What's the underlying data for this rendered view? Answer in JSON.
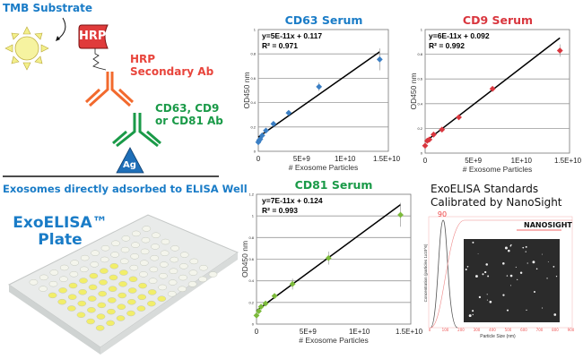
{
  "diagram": {
    "substrate_label": "TMB Substrate",
    "enzyme_label": "HRP",
    "secondary_label_1": "HRP",
    "secondary_label_2": "Secondary Ab",
    "primary_label_1": "CD63, CD9",
    "primary_label_2": "or CD81 Ab",
    "antigen_label": "Ag",
    "well_caption": "Exosomes directly adsorbed to ELISA Well",
    "plate_title_1": "ExoELISA™",
    "plate_title_2": "Plate",
    "colors": {
      "blue": "#1a7cc7",
      "red": "#e8453c",
      "orange": "#f26a2e",
      "green": "#1a9a48",
      "sun": "#f3ef8a"
    }
  },
  "nta": {
    "title_1": "ExoELISA Standards",
    "title_2": "Calibrated by NanoSight",
    "peak_label": "90",
    "xlabel": "Particle Size (nm)",
    "ylabel": "Concentration (particles 1x10^6)",
    "logo": "NANOSIGHT",
    "x_ticks": [
      "0",
      "100",
      "200",
      "300",
      "400",
      "500",
      "600",
      "700",
      "800",
      "900"
    ]
  },
  "chart_data": [
    {
      "type": "scatter",
      "title": "CD63 Serum",
      "color": "#3b7fc4",
      "xlabel": "# Exosome Particles",
      "ylabel": "OD450 nm",
      "equation": "y=5E-11x + 0.117",
      "r2": "R² = 0.971",
      "xlim": [
        0,
        15000000000.0
      ],
      "ylim": [
        0,
        1
      ],
      "x_ticks": [
        "0",
        "5E+9",
        "1E+10",
        "1.5E+10"
      ],
      "y_ticks": [
        "0",
        "0.2",
        "0.4",
        "0.6",
        "0.8",
        "1"
      ],
      "x": [
        0,
        100000000.0,
        220000000.0,
        440000000.0,
        880000000.0,
        1750000000.0,
        3500000000.0,
        7000000000.0,
        14000000000.0
      ],
      "y": [
        0.075,
        0.09,
        0.1,
        0.13,
        0.17,
        0.225,
        0.315,
        0.53,
        0.755
      ],
      "err": [
        0.01,
        0.01,
        0.01,
        0.01,
        0.01,
        0.015,
        0.02,
        0.035,
        0.09
      ],
      "fit": {
        "slope": 5e-11,
        "intercept": 0.117
      },
      "grid": true
    },
    {
      "type": "scatter",
      "title": "CD9 Serum",
      "color": "#d9363e",
      "xlabel": "# Exosome Particles",
      "ylabel": "OD450 nm",
      "equation": "y=6E-11x + 0.092",
      "r2": "R² = 0.992",
      "xlim": [
        0,
        15000000000.0
      ],
      "ylim": [
        0,
        1
      ],
      "x_ticks": [
        "0",
        "5E+9",
        "1E+10",
        "1.5E+10"
      ],
      "y_ticks": [
        "0",
        "0.2",
        "0.4",
        "0.6",
        "0.8",
        "1"
      ],
      "x": [
        0,
        220000000.0,
        440000000.0,
        880000000.0,
        1750000000.0,
        3500000000.0,
        7000000000.0,
        14000000000.0
      ],
      "y": [
        0.06,
        0.1,
        0.11,
        0.15,
        0.19,
        0.29,
        0.52,
        0.83
      ],
      "err": [
        0.01,
        0.01,
        0.01,
        0.01,
        0.01,
        0.01,
        0.01,
        0.05
      ],
      "fit": {
        "slope": 6e-11,
        "intercept": 0.092
      },
      "grid": true
    },
    {
      "type": "scatter",
      "title": "CD81 Serum",
      "color": "#7cba3b",
      "xlabel": "# Exosome Particles",
      "ylabel": "OD450 nm",
      "equation": "y=7E-11x + 0.124",
      "r2": "R² = 0.993",
      "xlim": [
        0,
        15000000000.0
      ],
      "ylim": [
        0,
        1.2
      ],
      "x_ticks": [
        "0",
        "5E+9",
        "1E+10",
        "1.5E+10"
      ],
      "y_ticks": [
        "0",
        "0.2",
        "0.4",
        "0.6",
        "0.8",
        "1",
        "1.2"
      ],
      "x": [
        0,
        220000000.0,
        440000000.0,
        880000000.0,
        1750000000.0,
        3500000000.0,
        7000000000.0,
        14000000000.0
      ],
      "y": [
        0.08,
        0.12,
        0.16,
        0.19,
        0.26,
        0.37,
        0.61,
        1.01
      ],
      "err": [
        0.02,
        0.02,
        0.02,
        0.01,
        0.02,
        0.05,
        0.06,
        0.11
      ],
      "fit": {
        "slope": 7e-11,
        "intercept": 0.124
      },
      "grid": true
    }
  ]
}
